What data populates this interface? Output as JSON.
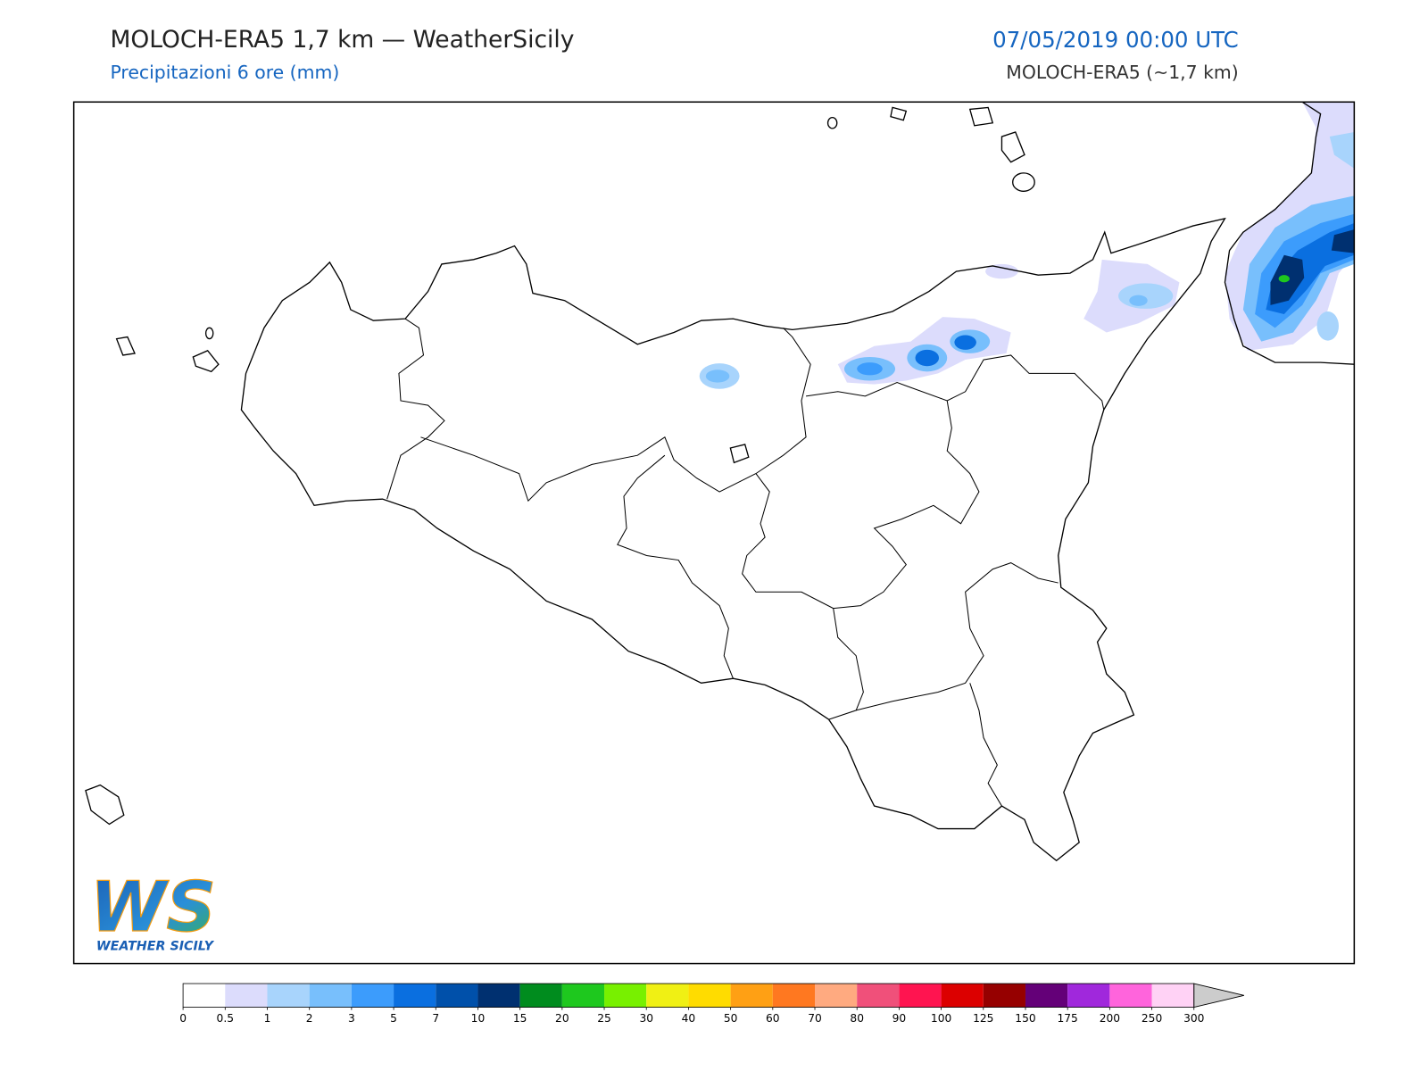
{
  "header": {
    "title": "MOLOCH-ERA5 1,7 km — WeatherSicily",
    "subtitle": "Precipitazioni 6 ore (mm)",
    "datetime": "07/05/2019 00:00 UTC",
    "model": "MOLOCH-ERA5 (~1,7 km)"
  },
  "logo": {
    "mark": "WS",
    "name": "WEATHER SICILY"
  },
  "colorbar": {
    "ticks": [
      0,
      0.5,
      1,
      2,
      3,
      5,
      7,
      10,
      15,
      20,
      25,
      30,
      40,
      50,
      60,
      70,
      80,
      90,
      100,
      125,
      150,
      175,
      200,
      250,
      300
    ],
    "colors": [
      "#ffffff",
      "#dcdcfc",
      "#a8d4fc",
      "#78bffc",
      "#3c9cfc",
      "#0a6fe0",
      "#0050aa",
      "#003070",
      "#008c1e",
      "#1ec81e",
      "#78f000",
      "#f0f014",
      "#ffdc00",
      "#ffa014",
      "#ff7820",
      "#ffaa80",
      "#f0507a",
      "#ff1450",
      "#dc0000",
      "#960000",
      "#640078",
      "#a028dc",
      "#ff64dc",
      "#ffd2f5"
    ],
    "extend_color": "#cccccc"
  }
}
